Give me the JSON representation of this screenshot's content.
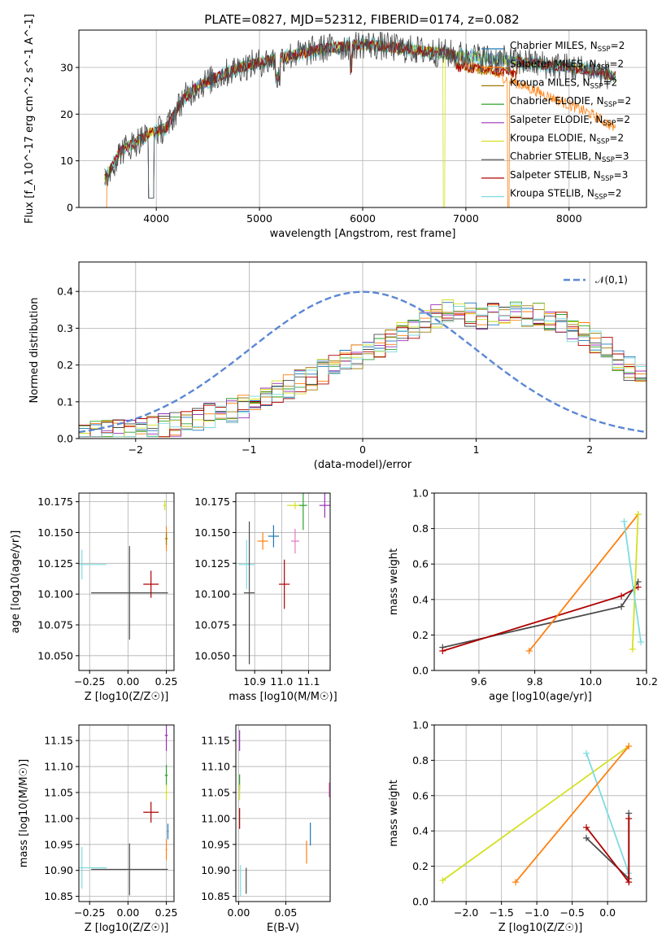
{
  "figure": {
    "title": "PLATE=0827, MJD=52312, FIBERID=0174, z=0.082",
    "colors": {
      "Chabrier MILES": "#1f77b4",
      "Salpeter MILES": "#ff7f0e",
      "Kroupa MILES": "#9c7a00",
      "Chabrier ELODIE": "#2ca02c",
      "Salpeter ELODIE": "#9b30b8",
      "Kroupa ELODIE": "#d4e021",
      "Chabrier STELIB": "#4a4a4a",
      "Salpeter STELIB": "#b00000",
      "Kroupa STELIB": "#7fdbe0",
      "extra_pink": "#e377c2",
      "normal_curve": "#5b87d4"
    }
  },
  "chart_data": [
    {
      "id": "spectrum",
      "type": "line",
      "title": "PLATE=0827, MJD=52312, FIBERID=0174, z=0.082",
      "xlabel": "wavelength [Angstrom, rest frame]",
      "ylabel": "Flux [f_λ 10^-17 erg cm^-2 s^-1 A^-1]",
      "xlim": [
        3250,
        8750
      ],
      "ylim": [
        0,
        38
      ],
      "xticks": [
        4000,
        5000,
        6000,
        7000,
        8000
      ],
      "yticks": [
        0,
        10,
        20,
        30
      ],
      "grid": true,
      "legend_position": "right",
      "legend": [
        "Chabrier MILES, N_SSP=2",
        "Salpeter MILES, N_SSP=2",
        "Kroupa MILES, N_SSP=2",
        "Chabrier ELODIE, N_SSP=2",
        "Salpeter ELODIE, N_SSP=2",
        "Kroupa ELODIE, N_SSP=2",
        "Chabrier STELIB, N_SSP=3",
        "Salpeter STELIB, N_SSP=3",
        "Kroupa STELIB, N_SSP=2"
      ],
      "continuum": {
        "x": [
          3500,
          3650,
          3800,
          3950,
          4100,
          4250,
          4400,
          4600,
          4800,
          5000,
          5200,
          5400,
          5600,
          5800,
          6000,
          6200,
          6400,
          6600,
          6800,
          7000,
          7200,
          7400,
          7600,
          7800,
          8000,
          8200,
          8450
        ],
        "y": [
          6,
          12,
          14,
          16,
          17,
          23,
          26,
          28,
          30,
          31,
          32,
          33,
          34,
          34.5,
          35,
          34.5,
          34,
          33.5,
          33,
          32.5,
          32,
          31.5,
          31,
          30.5,
          30,
          29.5,
          28
        ]
      }
    },
    {
      "id": "residuals",
      "type": "line",
      "xlabel": "(data-model)/error",
      "ylabel": "Normed distribution",
      "xlim": [
        -2.5,
        2.5
      ],
      "ylim": [
        0,
        0.48
      ],
      "xticks": [
        -2,
        -1,
        0,
        1,
        2
      ],
      "yticks": [
        0.0,
        0.1,
        0.2,
        0.3,
        0.4
      ],
      "grid": true,
      "legend": [
        "𝒩(0,1)"
      ],
      "legend_position": "top-right",
      "histogram_envelope": {
        "x": [
          -2.5,
          -2.0,
          -1.5,
          -1.0,
          -0.5,
          0.0,
          0.5,
          0.75,
          1.0,
          1.5,
          2.0,
          2.5
        ],
        "y": [
          0.01,
          0.02,
          0.05,
          0.09,
          0.16,
          0.23,
          0.31,
          0.35,
          0.33,
          0.34,
          0.28,
          0.15
        ]
      }
    },
    {
      "id": "age-vs-Z",
      "type": "scatter",
      "xlabel": "Z [log10(Z/Z☉)]",
      "ylabel": "age [log10(age/yr)]",
      "xlim": [
        -0.32,
        0.3
      ],
      "ylim": [
        10.038,
        10.182
      ],
      "xticks": [
        -0.25,
        0.0,
        0.25
      ],
      "yticks": [
        10.05,
        10.075,
        10.1,
        10.125,
        10.15,
        10.175
      ],
      "points": [
        {
          "s": "Kroupa STELIB",
          "x": -0.3,
          "y": 10.124,
          "xerr": 0.16,
          "yerr": 0.012
        },
        {
          "s": "Chabrier STELIB",
          "x": 0.01,
          "y": 10.101,
          "xerr": 0.25,
          "yerr": 0.038
        },
        {
          "s": "Salpeter STELIB",
          "x": 0.15,
          "y": 10.108,
          "xerr": 0.05,
          "yerr": 0.011
        },
        {
          "s": "Kroupa ELODIE",
          "x": 0.24,
          "y": 10.172,
          "xerr": 0.01,
          "yerr": 0.004
        },
        {
          "s": "Salpeter MILES",
          "x": 0.25,
          "y": 10.145,
          "xerr": 0.01,
          "yerr": 0.01
        },
        {
          "s": "Kroupa MILES",
          "x": 0.25,
          "y": 10.145,
          "xerr": 0.005,
          "yerr": 0.005
        }
      ]
    },
    {
      "id": "age-vs-mass",
      "type": "scatter",
      "xlabel": "mass [log10(M/M☉)]",
      "ylabel": "",
      "xlim": [
        10.83,
        11.18
      ],
      "ylim": [
        10.038,
        10.182
      ],
      "xticks": [
        10.9,
        11.0,
        11.1
      ],
      "yticks": [
        10.05,
        10.075,
        10.1,
        10.125,
        10.15,
        10.175
      ],
      "points": [
        {
          "s": "Kroupa STELIB",
          "x": 10.87,
          "y": 10.124,
          "xerr": 0.03,
          "yerr": 0.02
        },
        {
          "s": "Chabrier STELIB",
          "x": 10.88,
          "y": 10.101,
          "xerr": 0.02,
          "yerr": 0.058
        },
        {
          "s": "Salpeter MILES",
          "x": 10.93,
          "y": 10.143,
          "xerr": 0.02,
          "yerr": 0.007
        },
        {
          "s": "Chabrier MILES",
          "x": 10.97,
          "y": 10.147,
          "xerr": 0.02,
          "yerr": 0.009
        },
        {
          "s": "Salpeter STELIB",
          "x": 11.01,
          "y": 10.108,
          "xerr": 0.02,
          "yerr": 0.02
        },
        {
          "s": "extra_pink",
          "x": 11.05,
          "y": 10.143,
          "xerr": 0.015,
          "yerr": 0.01
        },
        {
          "s": "Kroupa ELODIE",
          "x": 11.05,
          "y": 10.172,
          "xerr": 0.03,
          "yerr": 0.003
        },
        {
          "s": "Chabrier ELODIE",
          "x": 11.08,
          "y": 10.172,
          "xerr": 0.015,
          "yerr": 0.02
        },
        {
          "s": "Salpeter ELODIE",
          "x": 11.16,
          "y": 10.172,
          "xerr": 0.02,
          "yerr": 0.01
        }
      ]
    },
    {
      "id": "weight-vs-age",
      "type": "line",
      "xlabel": "age [log10(age/yr)]",
      "ylabel": "mass weight",
      "xlim": [
        9.44,
        10.2
      ],
      "ylim": [
        0,
        1.0
      ],
      "xticks": [
        9.6,
        9.8,
        10.0,
        10.2
      ],
      "yticks": [
        0.0,
        0.2,
        0.4,
        0.6,
        0.8,
        1.0
      ],
      "grid": true,
      "series": [
        {
          "s": "Chabrier STELIB",
          "x": [
            9.47,
            10.11,
            10.17
          ],
          "y": [
            0.13,
            0.36,
            0.5
          ]
        },
        {
          "s": "Salpeter STELIB",
          "x": [
            9.47,
            10.11,
            10.17
          ],
          "y": [
            0.11,
            0.42,
            0.47
          ]
        },
        {
          "s": "Salpeter MILES",
          "x": [
            9.78,
            10.17
          ],
          "y": [
            0.11,
            0.88
          ]
        },
        {
          "s": "Kroupa ELODIE",
          "x": [
            10.15,
            10.17
          ],
          "y": [
            0.12,
            0.88
          ]
        },
        {
          "s": "Kroupa STELIB",
          "x": [
            10.12,
            10.18
          ],
          "y": [
            0.84,
            0.16
          ]
        }
      ]
    },
    {
      "id": "mass-vs-Z",
      "type": "scatter",
      "xlabel": "Z [log10(Z/Z☉)]",
      "ylabel": "mass [log10(M/M☉)]",
      "xlim": [
        -0.32,
        0.3
      ],
      "ylim": [
        10.84,
        11.18
      ],
      "xticks": [
        -0.25,
        0.0,
        0.25
      ],
      "yticks": [
        10.85,
        10.9,
        10.95,
        11.0,
        11.05,
        11.1,
        11.15
      ],
      "points": [
        {
          "s": "Kroupa STELIB",
          "x": -0.3,
          "y": 10.905,
          "xerr": 0.16,
          "yerr": 0.04
        },
        {
          "s": "Chabrier STELIB",
          "x": 0.01,
          "y": 10.902,
          "xerr": 0.25,
          "yerr": 0.05
        },
        {
          "s": "Salpeter STELIB",
          "x": 0.15,
          "y": 11.012,
          "xerr": 0.05,
          "yerr": 0.02
        },
        {
          "s": "Salpeter ELODIE",
          "x": 0.25,
          "y": 11.16,
          "xerr": 0.01,
          "yerr": 0.03
        },
        {
          "s": "Chabrier ELODIE",
          "x": 0.25,
          "y": 11.083,
          "xerr": 0.01,
          "yerr": 0.02
        },
        {
          "s": "Kroupa ELODIE",
          "x": 0.25,
          "y": 11.05,
          "xerr": 0.01,
          "yerr": 0.015
        },
        {
          "s": "Chabrier MILES",
          "x": 0.26,
          "y": 10.975,
          "xerr": 0.005,
          "yerr": 0.015
        },
        {
          "s": "Salpeter MILES",
          "x": 0.25,
          "y": 10.94,
          "xerr": 0.005,
          "yerr": 0.02
        }
      ]
    },
    {
      "id": "mass-vs-EBV",
      "type": "scatter",
      "xlabel": "E(B-V)",
      "ylabel": "",
      "xlim": [
        -0.003,
        0.097
      ],
      "ylim": [
        10.84,
        11.18
      ],
      "xticks": [
        0.0,
        0.05
      ],
      "yticks": [
        10.85,
        10.9,
        10.95,
        11.0,
        11.05,
        11.1,
        11.15
      ],
      "points": [
        {
          "s": "Salpeter ELODIE",
          "x": 0.001,
          "y": 11.15,
          "yerr": 0.02
        },
        {
          "s": "Chabrier ELODIE",
          "x": 0.001,
          "y": 11.07,
          "yerr": 0.015
        },
        {
          "s": "Kroupa ELODIE",
          "x": 0.001,
          "y": 11.05,
          "yerr": 0.015
        },
        {
          "s": "Salpeter STELIB",
          "x": 0.001,
          "y": 11.0,
          "yerr": 0.02
        },
        {
          "s": "Kroupa STELIB",
          "x": 0.002,
          "y": 10.88,
          "yerr": 0.03
        },
        {
          "s": "Chabrier STELIB",
          "x": 0.008,
          "y": 10.88,
          "yerr": 0.025
        },
        {
          "s": "Salpeter MILES",
          "x": 0.072,
          "y": 10.935,
          "yerr": 0.022
        },
        {
          "s": "Chabrier MILES",
          "x": 0.076,
          "y": 10.97,
          "yerr": 0.022
        },
        {
          "s": "extra_pink",
          "x": 0.096,
          "y": 11.055,
          "yerr": 0.014
        }
      ]
    },
    {
      "id": "weight-vs-Z",
      "type": "line",
      "xlabel": "Z [log10(Z/Z☉)]",
      "ylabel": "mass weight",
      "xlim": [
        -2.45,
        0.55
      ],
      "ylim": [
        0,
        1.0
      ],
      "xticks": [
        -2.0,
        -1.5,
        -1.0,
        -0.5,
        0.0
      ],
      "yticks": [
        0.0,
        0.2,
        0.4,
        0.6,
        0.8,
        1.0
      ],
      "grid": true,
      "series": [
        {
          "s": "Kroupa ELODIE",
          "x": [
            -2.33,
            0.3
          ],
          "y": [
            0.12,
            0.88
          ]
        },
        {
          "s": "Kroupa STELIB",
          "x": [
            -0.3,
            0.3
          ],
          "y": [
            0.84,
            0.16
          ]
        },
        {
          "s": "Salpeter MILES",
          "x": [
            -1.3,
            0.3
          ],
          "y": [
            0.11,
            0.88
          ]
        },
        {
          "s": "Chabrier STELIB",
          "x": [
            -0.3,
            0.3,
            0.3
          ],
          "y": [
            0.36,
            0.13,
            0.5
          ]
        },
        {
          "s": "Salpeter STELIB",
          "x": [
            -0.3,
            0.3,
            0.3
          ],
          "y": [
            0.42,
            0.11,
            0.47
          ]
        }
      ]
    }
  ]
}
